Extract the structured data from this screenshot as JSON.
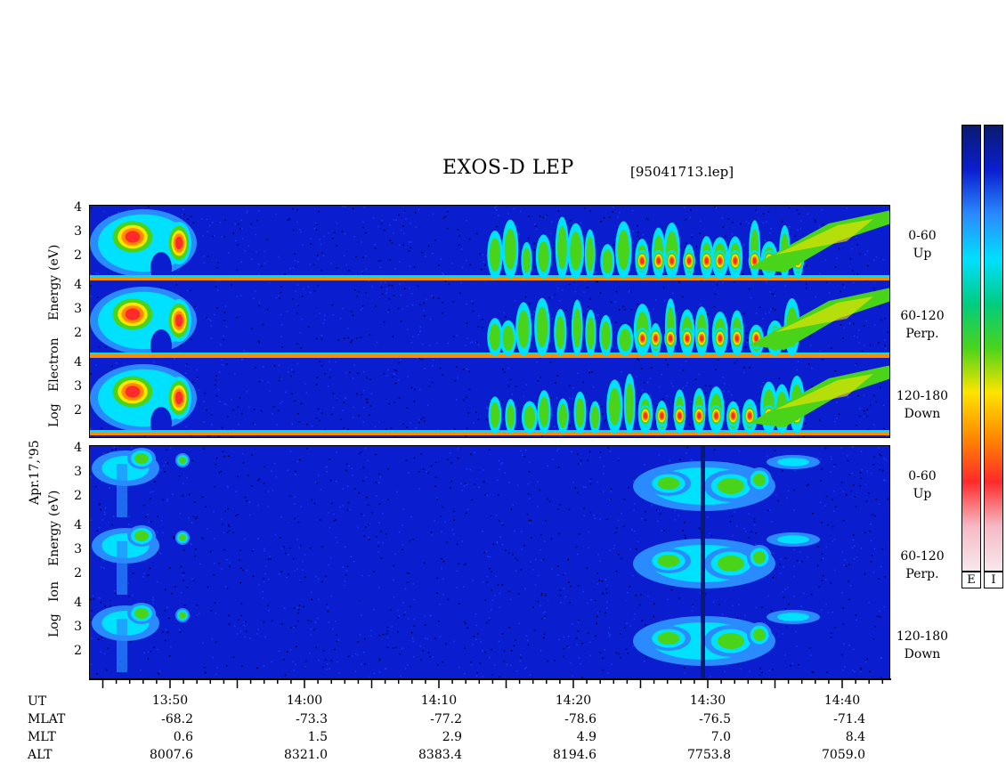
{
  "header": {
    "title": "EXOS-D LEP",
    "file": "[95041713.lep]"
  },
  "colorbar": {
    "electron_tag": "E",
    "ion_tag": "I",
    "colors": [
      "#f7e8ee",
      "#f5b9c4",
      "#ff2a2a",
      "#ff8a00",
      "#ffe400",
      "#49d41a",
      "#00cc80",
      "#00e0ff",
      "#2a8aff",
      "#0a1ecf",
      "#0a1a70"
    ]
  },
  "chart_data": {
    "type": "heatmap",
    "title": "EXOS-D LEP",
    "date_label": "Apr.17,'95",
    "y_range_log_eV": [
      1,
      4
    ],
    "y_ticks": [
      "4",
      "3",
      "2"
    ],
    "x_axis": {
      "label": "UT",
      "tick_labels": [
        "13:50",
        "14:00",
        "14:10",
        "14:20",
        "14:30",
        "14:40"
      ]
    },
    "electron_group": {
      "ylabel_lines": [
        "Log",
        "Electron",
        "Energy",
        "(eV)"
      ],
      "panels": [
        {
          "angle": "0-60",
          "direction": "Up"
        },
        {
          "angle": "60-120",
          "direction": "Perp."
        },
        {
          "angle": "120-180",
          "direction": "Down"
        }
      ]
    },
    "ion_group": {
      "ylabel_lines": [
        "Log",
        "Ion",
        "Energy",
        "(eV)"
      ],
      "panels": [
        {
          "angle": "0-60",
          "direction": "Up"
        },
        {
          "angle": "60-120",
          "direction": "Perp."
        },
        {
          "angle": "120-180",
          "direction": "Down"
        }
      ]
    },
    "ephemeris": {
      "rows": [
        {
          "label": "MLAT",
          "values": [
            "-68.2",
            "-73.3",
            "-77.2",
            "-78.6",
            "-76.5",
            "-71.4"
          ]
        },
        {
          "label": "MLT",
          "values": [
            "0.6",
            "1.5",
            "2.9",
            "4.9",
            "7.0",
            "8.4"
          ]
        },
        {
          "label": "ALT",
          "values": [
            "8007.6",
            "8321.0",
            "8383.4",
            "8194.6",
            "7753.8",
            "7059.0"
          ]
        }
      ]
    }
  }
}
